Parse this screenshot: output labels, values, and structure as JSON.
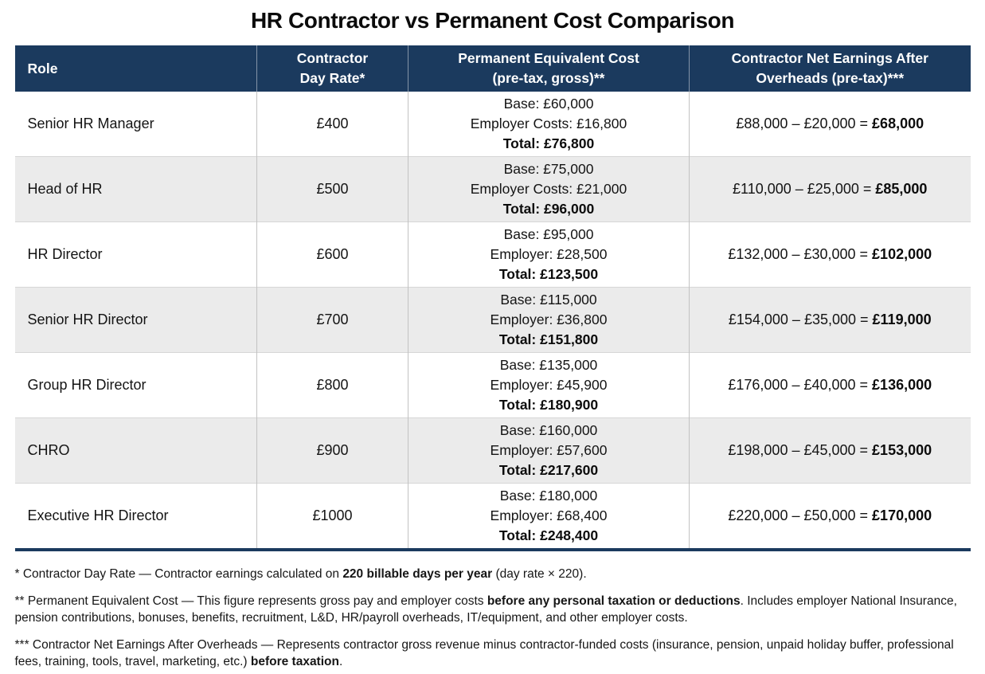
{
  "title": "HR Contractor vs Permanent Cost Comparison",
  "colors": {
    "header_bg": "#1b3a5e",
    "header_text": "#ffffff",
    "row_bg": "#ffffff",
    "row_alt_bg": "#ebebeb",
    "table_bottom_border": "#1b3a5e",
    "body_text": "#141414"
  },
  "table": {
    "columns": [
      {
        "lines": [
          "Role"
        ]
      },
      {
        "lines": [
          "Contractor",
          "Day Rate*"
        ]
      },
      {
        "lines": [
          "Permanent Equivalent Cost",
          "(pre-tax, gross)**"
        ]
      },
      {
        "lines": [
          "Contractor Net Earnings After",
          "Overheads (pre-tax)***"
        ]
      }
    ],
    "rows": [
      {
        "role": "Senior HR Manager",
        "day_rate": "£400",
        "permanent": {
          "base": "Base: £60,000",
          "employer": "Employer Costs: £16,800",
          "total": "Total: £76,800"
        },
        "net": {
          "calc": "£88,000 – £20,000 = ",
          "result": "£68,000"
        }
      },
      {
        "role": "Head of HR",
        "day_rate": "£500",
        "permanent": {
          "base": "Base: £75,000",
          "employer": "Employer Costs: £21,000",
          "total": "Total: £96,000"
        },
        "net": {
          "calc": "£110,000 – £25,000 = ",
          "result": "£85,000"
        }
      },
      {
        "role": "HR Director",
        "day_rate": "£600",
        "permanent": {
          "base": "Base: £95,000",
          "employer": "Employer: £28,500",
          "total": "Total: £123,500"
        },
        "net": {
          "calc": "£132,000 – £30,000 = ",
          "result": "£102,000"
        }
      },
      {
        "role": "Senior HR Director",
        "day_rate": "£700",
        "permanent": {
          "base": "Base: £115,000",
          "employer": "Employer: £36,800",
          "total": "Total: £151,800"
        },
        "net": {
          "calc": "£154,000 – £35,000 = ",
          "result": "£119,000"
        }
      },
      {
        "role": "Group HR Director",
        "day_rate": "£800",
        "permanent": {
          "base": "Base: £135,000",
          "employer": "Employer: £45,900",
          "total": "Total: £180,900"
        },
        "net": {
          "calc": "£176,000 – £40,000 = ",
          "result": "£136,000"
        }
      },
      {
        "role": "CHRO",
        "day_rate": "£900",
        "permanent": {
          "base": "Base: £160,000",
          "employer": "Employer: £57,600",
          "total": "Total: £217,600"
        },
        "net": {
          "calc": "£198,000 – £45,000 = ",
          "result": "£153,000"
        }
      },
      {
        "role": "Executive HR Director",
        "day_rate": "£1000",
        "permanent": {
          "base": "Base: £180,000",
          "employer": "Employer: £68,400",
          "total": "Total: £248,400"
        },
        "net": {
          "calc": "£220,000 – £50,000 = ",
          "result": "£170,000"
        }
      }
    ]
  },
  "footnotes": [
    {
      "segments": [
        {
          "text": "* Contractor Day Rate — Contractor earnings calculated on ",
          "bold": false
        },
        {
          "text": "220 billable days per year",
          "bold": true
        },
        {
          "text": " (day rate × 220).",
          "bold": false
        }
      ]
    },
    {
      "segments": [
        {
          "text": "** Permanent Equivalent Cost — This figure represents gross pay and employer costs ",
          "bold": false
        },
        {
          "text": "before any personal taxation or deductions",
          "bold": true
        },
        {
          "text": ". Includes employer National Insurance, pension contributions, bonuses, benefits, recruitment, L&D, HR/payroll overheads, IT/equipment, and other employer costs.",
          "bold": false
        }
      ]
    },
    {
      "segments": [
        {
          "text": "*** Contractor Net Earnings After Overheads — Represents contractor gross revenue minus contractor-funded costs (insurance, pension, unpaid holiday buffer, professional fees, training, tools, travel, marketing, etc.) ",
          "bold": false
        },
        {
          "text": "before taxation",
          "bold": true
        },
        {
          "text": ".",
          "bold": false
        }
      ]
    }
  ],
  "chart_data": {
    "type": "table",
    "title": "HR Contractor vs Permanent Cost Comparison",
    "columns": [
      "Role",
      "Contractor Day Rate*",
      "Permanent Equivalent Cost (pre-tax, gross)**",
      "Contractor Net Earnings After Overheads (pre-tax)***"
    ],
    "rows": [
      {
        "role": "Senior HR Manager",
        "day_rate_gbp": 400,
        "base_gbp": 60000,
        "employer_costs_gbp": 16800,
        "permanent_total_gbp": 76800,
        "contractor_gross_gbp": 88000,
        "contractor_overheads_gbp": 20000,
        "contractor_net_gbp": 68000
      },
      {
        "role": "Head of HR",
        "day_rate_gbp": 500,
        "base_gbp": 75000,
        "employer_costs_gbp": 21000,
        "permanent_total_gbp": 96000,
        "contractor_gross_gbp": 110000,
        "contractor_overheads_gbp": 25000,
        "contractor_net_gbp": 85000
      },
      {
        "role": "HR Director",
        "day_rate_gbp": 600,
        "base_gbp": 95000,
        "employer_costs_gbp": 28500,
        "permanent_total_gbp": 123500,
        "contractor_gross_gbp": 132000,
        "contractor_overheads_gbp": 30000,
        "contractor_net_gbp": 102000
      },
      {
        "role": "Senior HR Director",
        "day_rate_gbp": 700,
        "base_gbp": 115000,
        "employer_costs_gbp": 36800,
        "permanent_total_gbp": 151800,
        "contractor_gross_gbp": 154000,
        "contractor_overheads_gbp": 35000,
        "contractor_net_gbp": 119000
      },
      {
        "role": "Group HR Director",
        "day_rate_gbp": 800,
        "base_gbp": 135000,
        "employer_costs_gbp": 45900,
        "permanent_total_gbp": 180900,
        "contractor_gross_gbp": 176000,
        "contractor_overheads_gbp": 40000,
        "contractor_net_gbp": 136000
      },
      {
        "role": "CHRO",
        "day_rate_gbp": 900,
        "base_gbp": 160000,
        "employer_costs_gbp": 57600,
        "permanent_total_gbp": 217600,
        "contractor_gross_gbp": 198000,
        "contractor_overheads_gbp": 45000,
        "contractor_net_gbp": 153000
      },
      {
        "role": "Executive HR Director",
        "day_rate_gbp": 1000,
        "base_gbp": 180000,
        "employer_costs_gbp": 68400,
        "permanent_total_gbp": 248400,
        "contractor_gross_gbp": 220000,
        "contractor_overheads_gbp": 50000,
        "contractor_net_gbp": 170000
      }
    ],
    "notes": "Contractor gross = day rate × 220 billable days/year; all figures pre-tax."
  }
}
